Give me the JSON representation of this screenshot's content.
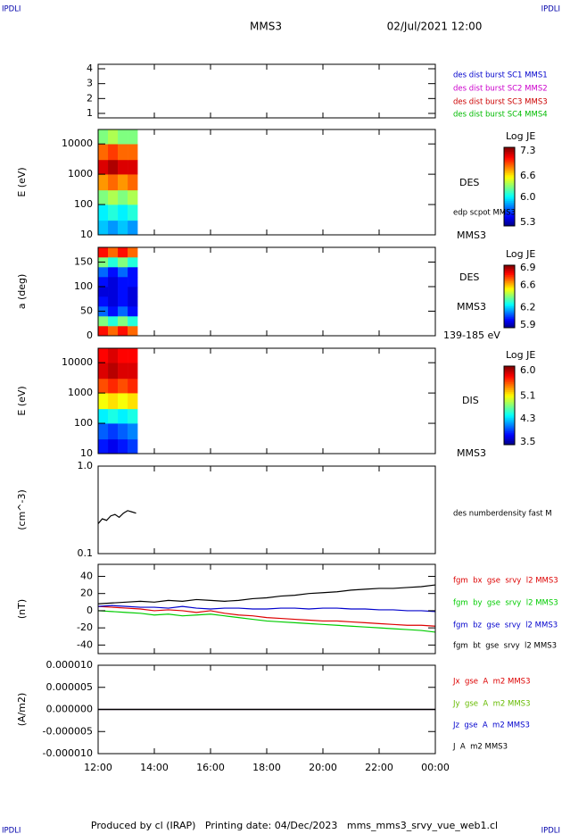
{
  "header": {
    "logo_left": "IPDLI",
    "logo_right": "IPDLI",
    "title": "MMS3",
    "date": "02/Jul/2021 12:00"
  },
  "footer": {
    "text": "Produced by cl (IRAP)   Printing date: 04/Dec/2023   mms_mms3_srvy_vue_web1.cl",
    "logo_left": "IPDLI",
    "logo_right": "IPDLI"
  },
  "chart_data": [
    {
      "type": "line",
      "xlim": [
        12,
        24
      ],
      "ylim": [
        0.7,
        4.3
      ],
      "yticks": [
        1,
        2,
        3,
        4
      ],
      "series": [
        {
          "name": "des dist burst SC1 MMS1",
          "color": "#0000cc"
        },
        {
          "name": "des dist burst SC2 MMS2",
          "color": "#cc00cc"
        },
        {
          "name": "des dist burst SC3 MMS3",
          "color": "#cc0000"
        },
        {
          "name": "des dist burst SC4 MMS4",
          "color": "#00bb00"
        }
      ]
    },
    {
      "type": "heatmap",
      "y_label": "E (eV)",
      "log": true,
      "xlim": [
        12,
        24
      ],
      "ylim": [
        10,
        30000
      ],
      "yticks": [
        10,
        100,
        1000,
        10000
      ],
      "annotations": [
        "DES",
        "edp scpot MMS3",
        "MMS3"
      ],
      "xbins": [
        12.0,
        12.35,
        12.7,
        13.05,
        13.4
      ],
      "ybins": [
        10,
        30,
        100,
        300,
        1000,
        3000,
        10000,
        30000
      ],
      "values": [
        [
          5.9,
          5.8,
          5.9,
          5.8
        ],
        [
          6.0,
          6.1,
          6.0,
          6.1
        ],
        [
          6.3,
          6.4,
          6.3,
          6.4
        ],
        [
          6.8,
          6.9,
          6.8,
          6.9
        ],
        [
          7.2,
          7.3,
          7.2,
          7.2
        ],
        [
          6.9,
          7.0,
          6.9,
          6.9
        ],
        [
          6.3,
          6.4,
          6.3,
          6.3
        ]
      ],
      "colorbar": {
        "label": "Log JE",
        "lim": [
          5.2,
          7.4
        ],
        "ticks": [
          7.3,
          6.6,
          {
            "value": 6.0,
            "label": "6.0"
          },
          5.3
        ]
      }
    },
    {
      "type": "heatmap",
      "y_label": "a (deg)",
      "log": false,
      "xlim": [
        12,
        24
      ],
      "ylim": [
        0,
        180
      ],
      "yticks": [
        0,
        50,
        100,
        150
      ],
      "annotations": [
        "DES",
        "MMS3",
        "139-185 eV"
      ],
      "xbins": [
        12.0,
        12.35,
        12.7,
        13.05,
        13.4
      ],
      "ybins": [
        0,
        20,
        40,
        60,
        80,
        100,
        120,
        140,
        160,
        180
      ],
      "values": [
        [
          6.8,
          6.7,
          6.8,
          6.7
        ],
        [
          6.4,
          6.3,
          6.4,
          6.3
        ],
        [
          6.1,
          6.0,
          6.1,
          6.0
        ],
        [
          6.0,
          5.95,
          6.0,
          5.95
        ],
        [
          5.95,
          5.95,
          6.0,
          5.95
        ],
        [
          6.0,
          5.95,
          6.0,
          6.0
        ],
        [
          6.1,
          6.0,
          6.1,
          6.0
        ],
        [
          6.4,
          6.3,
          6.4,
          6.3
        ],
        [
          6.8,
          6.7,
          6.8,
          6.7
        ]
      ],
      "colorbar": {
        "label": "Log JE",
        "lim": [
          5.85,
          6.95
        ],
        "ticks": [
          6.9,
          6.6,
          6.2,
          5.9
        ]
      }
    },
    {
      "type": "heatmap",
      "y_label": "E (eV)",
      "log": true,
      "xlim": [
        12,
        24
      ],
      "ylim": [
        10,
        30000
      ],
      "yticks": [
        10,
        100,
        1000,
        10000
      ],
      "annotations": [
        "DIS",
        "MMS3"
      ],
      "xbins": [
        12.0,
        12.35,
        12.7,
        13.05,
        13.4
      ],
      "ybins": [
        10,
        30,
        100,
        300,
        1000,
        3000,
        10000,
        30000
      ],
      "values": [
        [
          3.8,
          3.7,
          3.8,
          3.9
        ],
        [
          4.0,
          3.9,
          4.0,
          4.1
        ],
        [
          4.4,
          4.5,
          4.4,
          4.5
        ],
        [
          5.1,
          5.2,
          5.1,
          5.2
        ],
        [
          5.6,
          5.7,
          5.6,
          5.7
        ],
        [
          5.9,
          6.0,
          5.9,
          5.9
        ],
        [
          5.8,
          5.9,
          5.8,
          5.8
        ]
      ],
      "colorbar": {
        "label": "Log JE",
        "lim": [
          3.4,
          6.15
        ],
        "ticks": [
          {
            "value": 6.0,
            "label": "6.0"
          },
          5.1,
          4.3,
          3.5
        ]
      }
    },
    {
      "type": "line",
      "y_label": "(cm^-3)",
      "log": true,
      "xlim": [
        12,
        24
      ],
      "ylim": [
        0.1,
        1.0
      ],
      "yticks": [
        0.1,
        {
          "value": 1.0,
          "label": "1.0"
        }
      ],
      "x": [
        12.0,
        12.15,
        12.3,
        12.45,
        12.6,
        12.75,
        12.9,
        13.05,
        13.2,
        13.35
      ],
      "series": [
        {
          "name": "des numberdensity fast M",
          "color": "#000000",
          "values": [
            0.22,
            0.25,
            0.24,
            0.27,
            0.28,
            0.26,
            0.29,
            0.31,
            0.3,
            0.29
          ]
        }
      ]
    },
    {
      "type": "line",
      "y_label": "(nT)",
      "log": false,
      "xlim": [
        12,
        24
      ],
      "ylim": [
        -50,
        54
      ],
      "yticks": [
        -40,
        -20,
        0,
        20,
        40
      ],
      "x": [
        12,
        12.5,
        13,
        13.5,
        14,
        14.5,
        15,
        15.5,
        16,
        16.5,
        17,
        17.5,
        18,
        18.5,
        19,
        19.5,
        20,
        20.5,
        21,
        21.5,
        22,
        22.5,
        23,
        23.5,
        24
      ],
      "series": [
        {
          "name": "fgm  bx  gse  srvy  l2 MMS3",
          "color": "#dd0000",
          "values": [
            5,
            4,
            3,
            2,
            0,
            1,
            0,
            -2,
            0,
            -3,
            -5,
            -6,
            -8,
            -9,
            -10,
            -11,
            -12,
            -12,
            -13,
            -14,
            -15,
            -16,
            -17,
            -17,
            -18
          ]
        },
        {
          "name": "fgm  by  gse  srvy  l2 MMS3",
          "color": "#00cc00",
          "values": [
            0,
            -1,
            -2,
            -3,
            -5,
            -4,
            -6,
            -5,
            -4,
            -6,
            -8,
            -10,
            -12,
            -13,
            -14,
            -15,
            -16,
            -17,
            -18,
            -19,
            -20,
            -21,
            -22,
            -23,
            -25
          ]
        },
        {
          "name": "fgm  bz  gse  srvy  l2 MMS3",
          "color": "#0000cc",
          "values": [
            5,
            6,
            5,
            4,
            4,
            3,
            5,
            3,
            2,
            3,
            3,
            2,
            2,
            3,
            3,
            2,
            3,
            3,
            2,
            2,
            1,
            1,
            0,
            0,
            -1
          ]
        },
        {
          "name": "fgm  bt  gse  srvy  l2 MMS3",
          "color": "#000000",
          "values": [
            8,
            9,
            10,
            11,
            10,
            12,
            11,
            13,
            12,
            11,
            12,
            14,
            15,
            17,
            18,
            20,
            21,
            22,
            24,
            25,
            26,
            26,
            27,
            28,
            30
          ]
        }
      ]
    },
    {
      "type": "line",
      "y_label": "(A/m2)",
      "log": false,
      "xlim": [
        12,
        24
      ],
      "ylim": [
        -1e-05,
        1e-05
      ],
      "yticks": [
        {
          "value": 1e-05,
          "label": "0.000010"
        },
        {
          "value": 5e-06,
          "label": "0.000005"
        },
        {
          "value": 0,
          "label": "0.000000"
        },
        {
          "value": -5e-06,
          "label": "-0.000005"
        },
        {
          "value": -1e-05,
          "label": "-0.000010"
        }
      ],
      "xticks": [
        {
          "value": 12,
          "label": "12:00"
        },
        {
          "value": 14,
          "label": "14:00"
        },
        {
          "value": 16,
          "label": "16:00"
        },
        {
          "value": 18,
          "label": "18:00"
        },
        {
          "value": 20,
          "label": "20:00"
        },
        {
          "value": 22,
          "label": "22:00"
        },
        {
          "value": 24,
          "label": "00:00"
        }
      ],
      "x": [
        12,
        15,
        18,
        21,
        24
      ],
      "series": [
        {
          "name": "Jx  gse  A  m2 MMS3",
          "color": "#dd0000",
          "values": [
            0,
            0,
            0,
            0,
            0
          ]
        },
        {
          "name": "Jy  gse  A  m2 MMS3",
          "color": "#66bb00",
          "values": [
            0,
            0,
            0,
            0,
            0
          ]
        },
        {
          "name": "Jz  gse  A  m2 MMS3",
          "color": "#0000cc",
          "values": [
            0,
            0,
            0,
            0,
            0
          ]
        },
        {
          "name": "J  A  m2 MMS3",
          "color": "#000000",
          "values": [
            0,
            0,
            0,
            0,
            0
          ]
        }
      ]
    }
  ]
}
